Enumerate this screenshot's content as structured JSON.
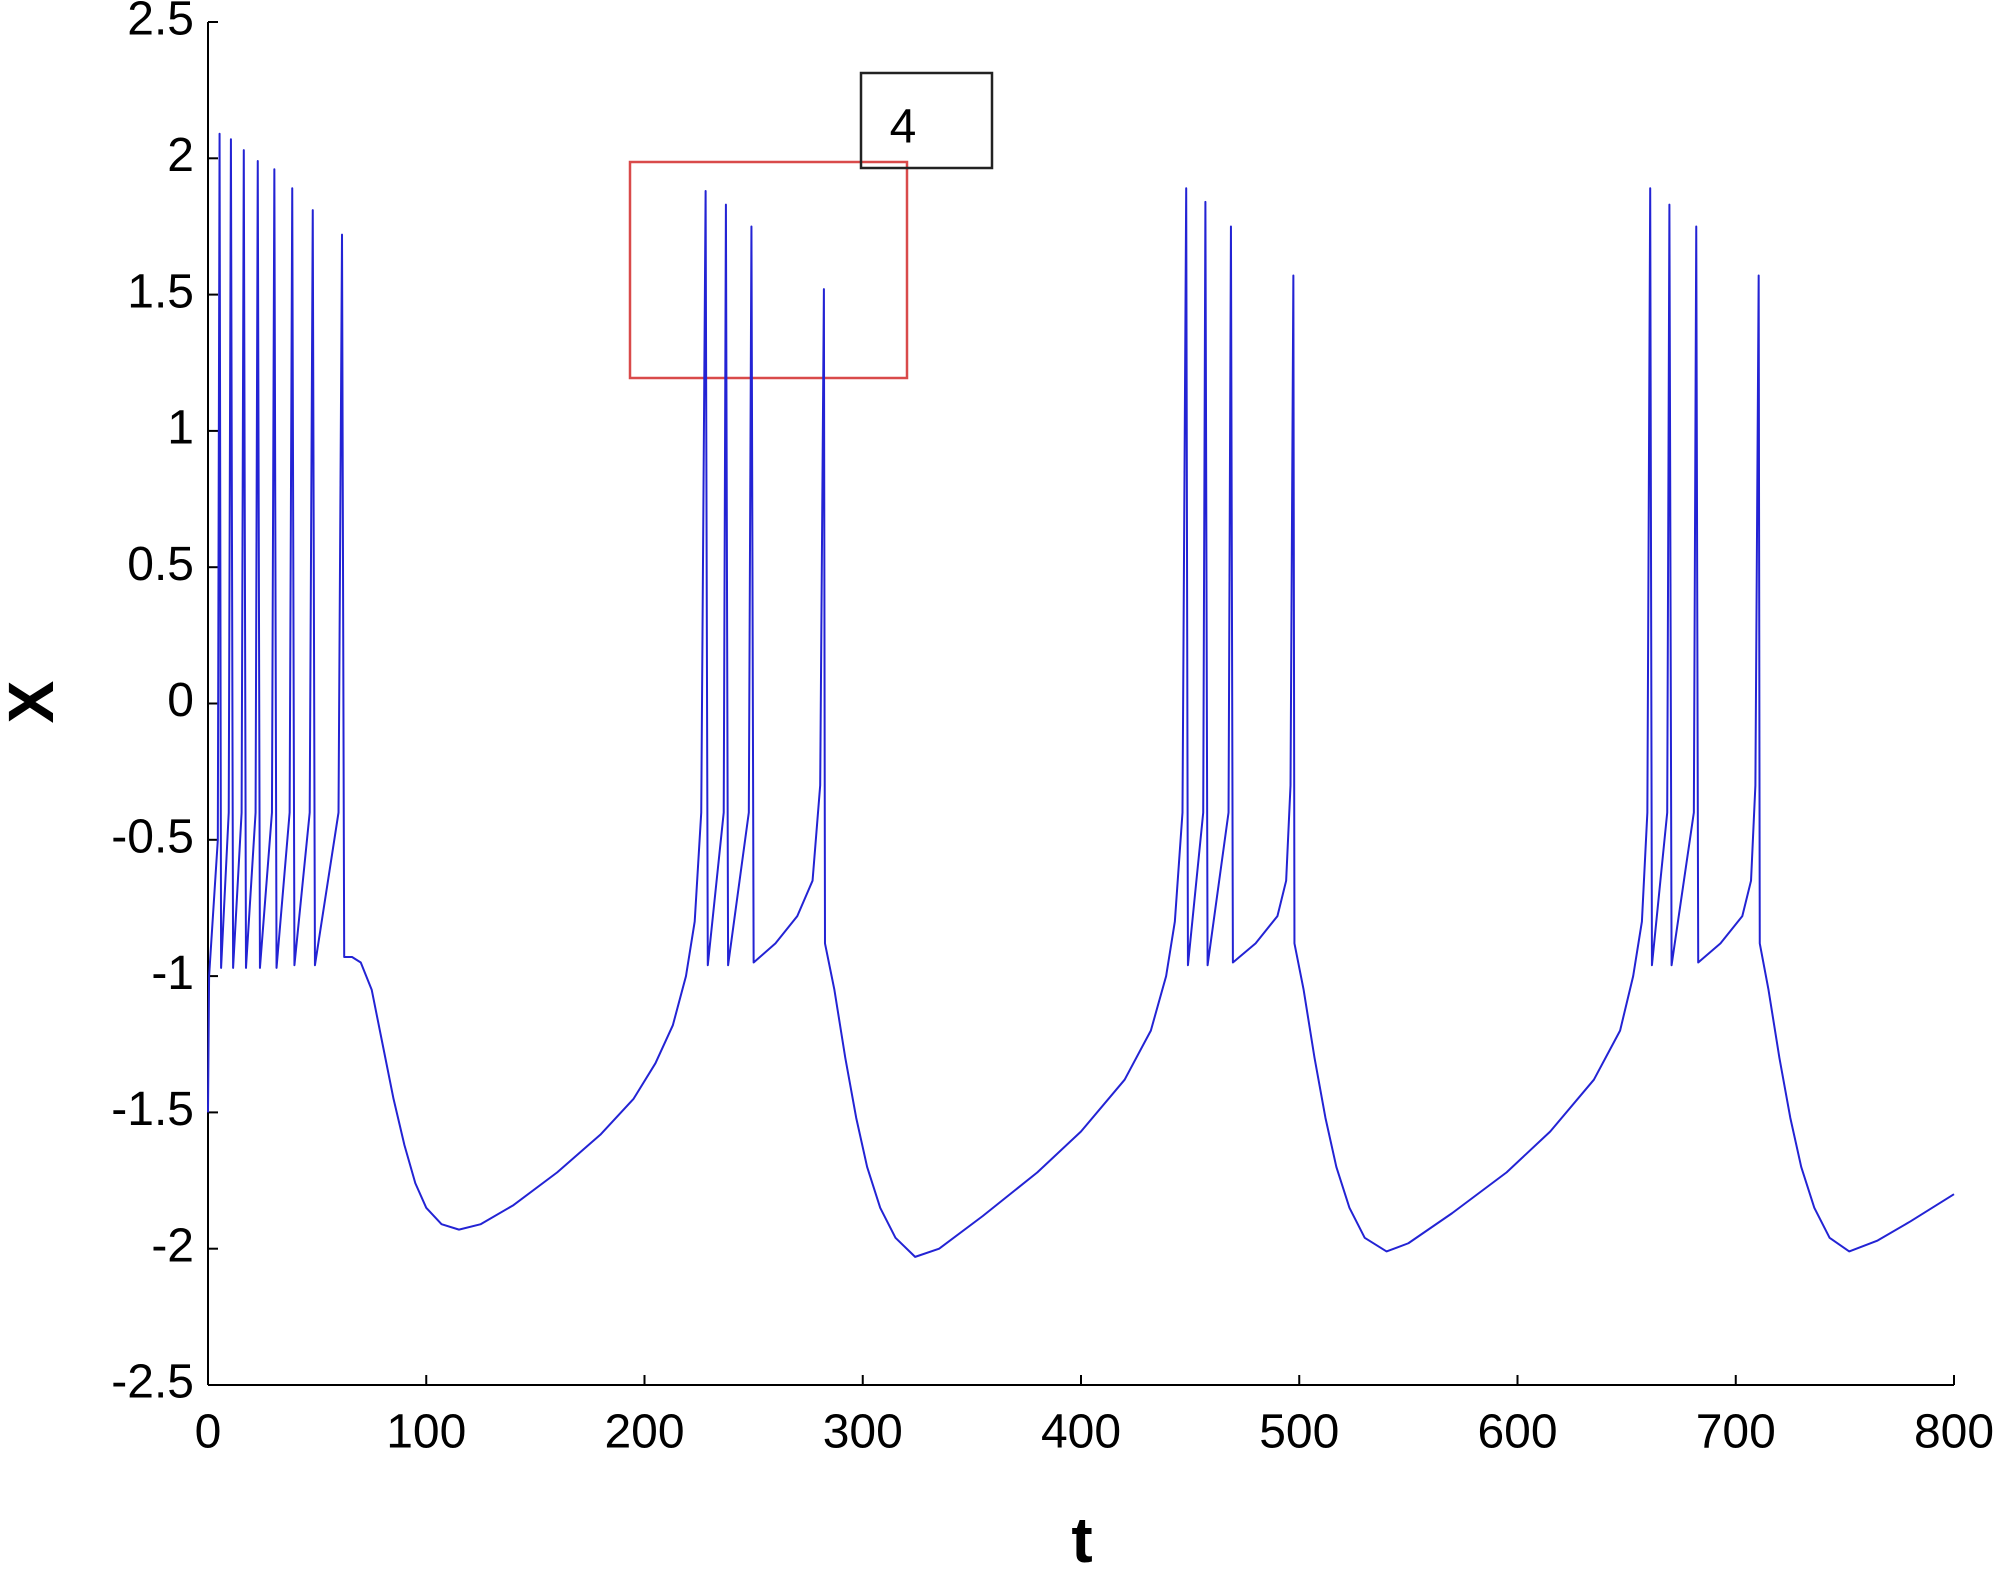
{
  "chart_data": {
    "type": "line",
    "xlabel": "t",
    "ylabel": "X",
    "annotation": "4",
    "color": "#2323d4",
    "xlim": [
      0,
      800
    ],
    "ylim": [
      -2.5,
      2.5
    ],
    "xticks": [
      0,
      100,
      200,
      300,
      400,
      500,
      600,
      700,
      800
    ],
    "yticks": [
      -2.5,
      -2,
      -1.5,
      -1,
      -0.5,
      0,
      0.5,
      1,
      1.5,
      2,
      2.5
    ],
    "x": [
      0,
      0.5,
      4.5,
      5.3,
      6,
      9.5,
      10.5,
      11.5,
      15.4,
      16.4,
      17.4,
      21.8,
      22.8,
      23.8,
      29.3,
      30.4,
      31.4,
      37.4,
      38.6,
      39.6,
      46.6,
      48,
      49,
      59.8,
      61.4,
      62.4,
      66,
      70,
      75,
      80,
      85,
      90,
      95,
      100,
      107,
      115,
      125,
      140,
      160,
      180,
      195,
      205,
      213,
      219,
      223,
      226,
      228,
      229,
      236.3,
      237.3,
      238.3,
      247.8,
      249,
      250,
      260,
      270,
      277,
      280.5,
      282.2,
      282.7,
      287,
      292,
      297,
      302,
      308,
      315,
      324,
      335,
      355,
      380,
      400,
      420,
      432,
      439,
      443,
      446.5,
      448.2,
      449,
      456,
      457,
      458,
      467.6,
      468.7,
      469.6,
      480,
      490,
      494,
      496,
      497.3,
      497.8,
      502,
      507,
      512,
      517,
      523,
      530,
      540,
      550,
      570,
      595,
      615,
      635,
      647,
      653,
      657,
      659.5,
      660.8,
      661.6,
      668.6,
      669.6,
      670.6,
      680.8,
      681.9,
      682.8,
      693,
      703,
      707,
      709,
      710.5,
      711,
      715,
      720,
      725,
      730,
      736,
      743,
      752,
      765,
      780,
      800
    ],
    "values": [
      -1.5,
      -1.0,
      -0.5,
      2.09,
      -0.97,
      -0.4,
      2.07,
      -0.97,
      -0.4,
      2.03,
      -0.97,
      -0.4,
      1.99,
      -0.97,
      -0.4,
      1.96,
      -0.97,
      -0.4,
      1.89,
      -0.96,
      -0.4,
      1.81,
      -0.96,
      -0.4,
      1.72,
      -0.93,
      -0.93,
      -0.95,
      -1.05,
      -1.25,
      -1.45,
      -1.62,
      -1.76,
      -1.85,
      -1.91,
      -1.93,
      -1.91,
      -1.84,
      -1.72,
      -1.58,
      -1.45,
      -1.32,
      -1.18,
      -1.0,
      -0.8,
      -0.4,
      1.88,
      -0.96,
      -0.4,
      1.83,
      -0.96,
      -0.4,
      1.75,
      -0.95,
      -0.88,
      -0.78,
      -0.65,
      -0.3,
      1.52,
      -0.88,
      -1.05,
      -1.3,
      -1.52,
      -1.7,
      -1.85,
      -1.96,
      -2.03,
      -2.0,
      -1.88,
      -1.72,
      -1.57,
      -1.38,
      -1.2,
      -1.0,
      -0.8,
      -0.4,
      1.89,
      -0.96,
      -0.4,
      1.84,
      -0.96,
      -0.4,
      1.75,
      -0.95,
      -0.88,
      -0.78,
      -0.65,
      -0.3,
      1.57,
      -0.88,
      -1.05,
      -1.3,
      -1.52,
      -1.7,
      -1.85,
      -1.96,
      -2.01,
      -1.98,
      -1.87,
      -1.72,
      -1.57,
      -1.38,
      -1.2,
      -1.0,
      -0.8,
      -0.4,
      1.89,
      -0.96,
      -0.4,
      1.83,
      -0.96,
      -0.4,
      1.75,
      -0.95,
      -0.88,
      -0.78,
      -0.65,
      -0.3,
      1.57,
      -0.88,
      -1.05,
      -1.3,
      -1.52,
      -1.7,
      -1.85,
      -1.96,
      -2.01,
      -1.97,
      -1.9,
      -1.8
    ]
  }
}
